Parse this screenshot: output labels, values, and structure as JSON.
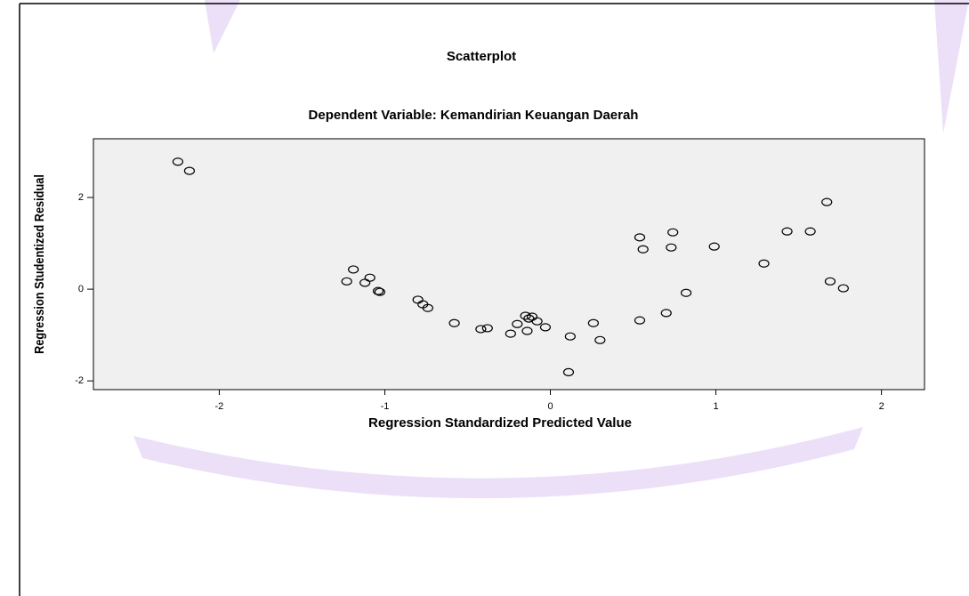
{
  "chart_data": {
    "type": "scatter",
    "title": "Scatterplot",
    "subtitle": "Dependent Variable: Kemandirian Keuangan Daerah",
    "xlabel": "Regression Standardized Predicted Value",
    "ylabel": "Regression Studentized Residual",
    "xlim": [
      -2.76,
      2.26
    ],
    "ylim": [
      -2.19,
      3.28
    ],
    "xticks": [
      -2,
      -1,
      0,
      1,
      2
    ],
    "yticks": [
      -2,
      0,
      2
    ],
    "color": "#000000",
    "background": "#f0f0f0",
    "x": [
      -2.25,
      -2.18,
      -1.19,
      -1.23,
      -1.12,
      -1.09,
      -1.04,
      -1.03,
      -0.8,
      -0.77,
      -0.74,
      -0.58,
      -0.42,
      -0.38,
      -0.24,
      -0.2,
      -0.15,
      -0.14,
      -0.13,
      -0.11,
      -0.08,
      -0.03,
      0.12,
      0.11,
      0.26,
      0.3,
      0.54,
      0.56,
      0.54,
      0.7,
      0.73,
      0.74,
      0.82,
      0.99,
      1.29,
      1.43,
      1.57,
      1.67,
      1.69,
      1.77
    ],
    "y": [
      2.78,
      2.58,
      0.43,
      0.17,
      0.14,
      0.25,
      -0.04,
      -0.06,
      -0.23,
      -0.33,
      -0.41,
      -0.74,
      -0.87,
      -0.85,
      -0.97,
      -0.76,
      -0.58,
      -0.91,
      -0.64,
      -0.6,
      -0.7,
      -0.83,
      -1.03,
      -1.81,
      -0.74,
      -1.11,
      1.13,
      0.87,
      -0.68,
      -0.52,
      0.91,
      1.24,
      -0.08,
      0.93,
      0.56,
      1.26,
      1.26,
      1.9,
      0.17,
      0.02
    ]
  }
}
